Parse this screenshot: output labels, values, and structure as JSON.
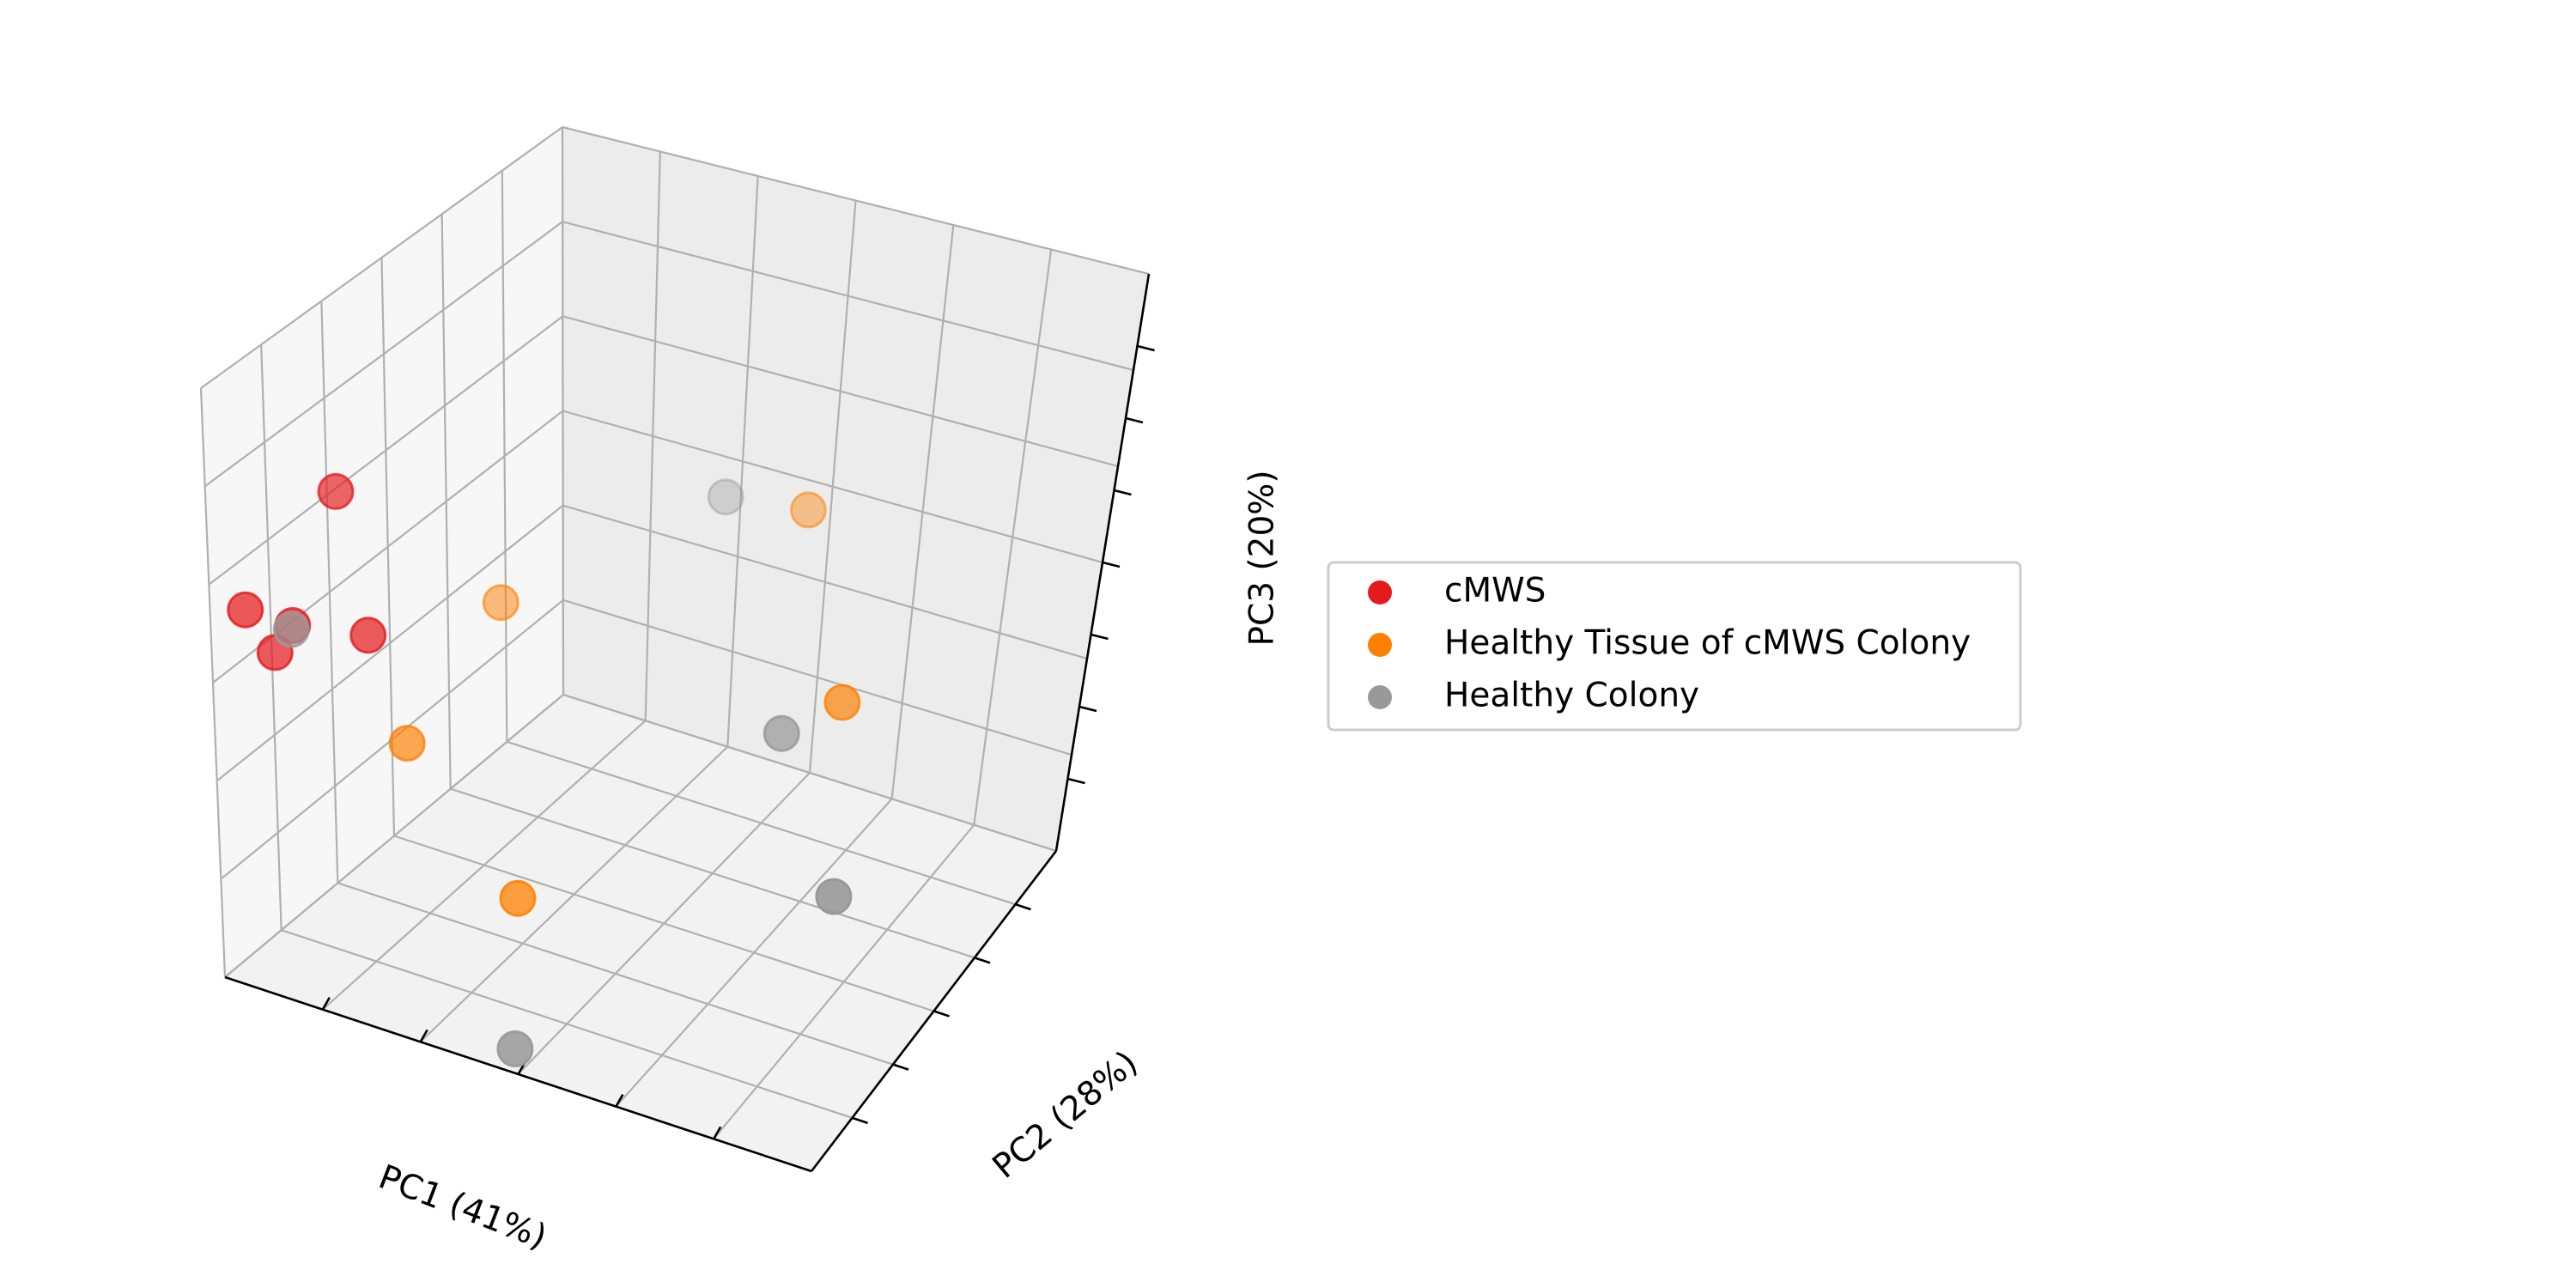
{
  "chart_data": {
    "type": "scatter",
    "projection": "3d",
    "title": "",
    "xlabel": "PC1 (41%)",
    "ylabel": "PC2 (28%)",
    "zlabel": "PC3 (20%)",
    "tick_labels_shown": false,
    "grid": true,
    "legend_position": "right",
    "xlim": [
      0,
      1
    ],
    "ylim": [
      0,
      1
    ],
    "zlim": [
      0,
      1
    ],
    "series": [
      {
        "name": "cMWS",
        "color": "#e41a1c",
        "points": [
          {
            "x": 0.1,
            "y": 0.2,
            "z": 0.8
          },
          {
            "x": 0.03,
            "y": 0.05,
            "z": 0.62
          },
          {
            "x": 0.08,
            "y": 0.1,
            "z": 0.6
          },
          {
            "x": 0.06,
            "y": 0.08,
            "z": 0.55
          },
          {
            "x": 0.18,
            "y": 0.15,
            "z": 0.62
          }
        ]
      },
      {
        "name": "Healthy Tissue of cMWS Colony",
        "color": "#ff7f00",
        "points": [
          {
            "x": 0.55,
            "y": 0.83,
            "z": 0.59
          },
          {
            "x": 0.2,
            "y": 0.5,
            "z": 0.49
          },
          {
            "x": 0.2,
            "y": 0.22,
            "z": 0.39
          },
          {
            "x": 0.8,
            "y": 0.5,
            "z": 0.6
          },
          {
            "x": 0.4,
            "y": 0.2,
            "z": 0.2
          }
        ]
      },
      {
        "name": "Healthy Colony",
        "color": "#999999",
        "points": [
          {
            "x": 0.09,
            "y": 0.08,
            "z": 0.61
          },
          {
            "x": 0.38,
            "y": 0.87,
            "z": 0.53
          },
          {
            "x": 0.75,
            "y": 0.4,
            "z": 0.6
          },
          {
            "x": 0.95,
            "y": 0.2,
            "z": 0.58
          },
          {
            "x": 0.47,
            "y": 0.05,
            "z": 0.01
          }
        ]
      }
    ]
  }
}
